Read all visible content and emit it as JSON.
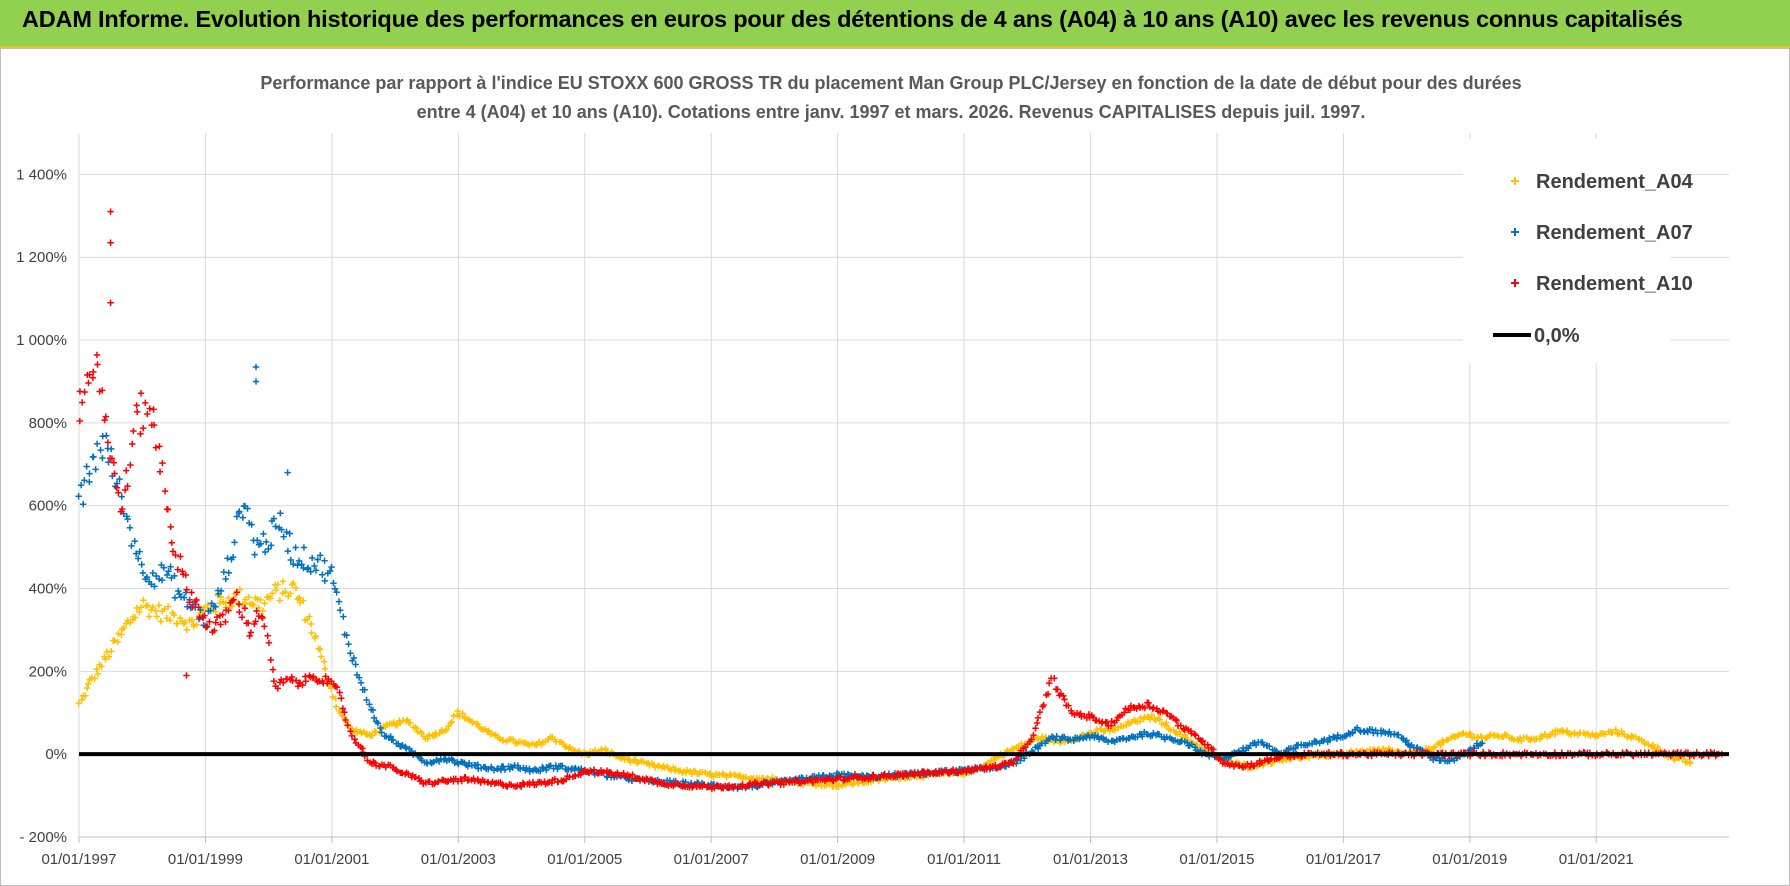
{
  "header": {
    "banner_text": "ADAM Informe. Evolution historique des performances en euros pour des détentions de 4 ans (A04) à 10 ans (A10) avec les revenus connus capitalisés",
    "banner_color": "#92d050"
  },
  "chart_data": {
    "type": "scatter",
    "title_lines": [
      "Performance par rapport à l'indice EU STOXX 600 GROSS TR  du placement Man Group PLC/Jersey en fonction de la date de début pour des durées",
      "entre 4 (A04) et 10 ans (A10).  Cotations entre janv. 1997 et mars. 2026. Revenus CAPITALISES depuis juil. 1997."
    ],
    "xlabel": "",
    "ylabel": "",
    "x_range": [
      1997.0,
      2023.1
    ],
    "ylim": [
      -200,
      1500
    ],
    "y_ticks": [
      -200,
      0,
      200,
      400,
      600,
      800,
      1000,
      1200,
      1400
    ],
    "y_tick_labels": [
      "- 200%",
      "0%",
      "200%",
      "400%",
      "600%",
      "800%",
      "1 000%",
      "1 200%",
      "1 400%"
    ],
    "x_ticks": [
      1997,
      1999,
      2001,
      2003,
      2005,
      2007,
      2009,
      2011,
      2013,
      2015,
      2017,
      2019,
      2021
    ],
    "x_tick_labels": [
      "01/01/1997",
      "01/01/1999",
      "01/01/2001",
      "01/01/2003",
      "01/01/2005",
      "01/01/2007",
      "01/01/2009",
      "01/01/2011",
      "01/01/2013",
      "01/01/2015",
      "01/01/2017",
      "01/01/2019",
      "01/01/2021"
    ],
    "grid": true,
    "legend_position": "top-right",
    "reference_line": {
      "name": "0,0%",
      "y": 0,
      "color": "#000000"
    },
    "series": [
      {
        "name": "Rendement_A04",
        "color": "#ffc000",
        "x": [
          1997.0,
          1997.2,
          1997.5,
          1997.8,
          1998.0,
          1998.3,
          1998.6,
          1998.8,
          1999.0,
          1999.3,
          1999.6,
          1999.9,
          2000.1,
          2000.4,
          2000.7,
          2000.9,
          2001.1,
          2001.3,
          2001.6,
          2001.9,
          2002.2,
          2002.5,
          2002.8,
          2003.0,
          2003.3,
          2003.6,
          2003.9,
          2004.2,
          2004.5,
          2004.8,
          2005.0,
          2005.3,
          2005.6,
          2006.0,
          2006.5,
          2007.0,
          2007.5,
          2008.0,
          2008.5,
          2009.0,
          2009.5,
          2010.0,
          2010.5,
          2011.0,
          2011.3,
          2011.6,
          2011.9,
          2012.2,
          2012.5,
          2012.8,
          2013.1,
          2013.4,
          2013.7,
          2014.0,
          2014.3,
          2014.6,
          2014.9,
          2015.2,
          2015.5,
          2015.8,
          2016.1,
          2016.5,
          2016.9,
          2017.3,
          2017.7,
          2018.0,
          2018.3,
          2018.6,
          2018.9,
          2019.2,
          2019.5,
          2019.8,
          2020.1,
          2020.4,
          2020.7,
          2021.0,
          2021.3,
          2021.6,
          2021.9,
          2022.2,
          2022.5
        ],
        "values": [
          120,
          180,
          250,
          320,
          360,
          340,
          330,
          310,
          350,
          370,
          380,
          360,
          390,
          400,
          300,
          200,
          110,
          60,
          45,
          70,
          80,
          40,
          60,
          100,
          70,
          40,
          30,
          20,
          40,
          10,
          0,
          10,
          -10,
          -25,
          -40,
          -50,
          -55,
          -60,
          -70,
          -75,
          -65,
          -55,
          -50,
          -45,
          -30,
          0,
          20,
          40,
          30,
          40,
          55,
          60,
          80,
          90,
          60,
          30,
          0,
          -20,
          -30,
          -20,
          -10,
          -5,
          0,
          5,
          10,
          0,
          10,
          30,
          50,
          40,
          45,
          35,
          40,
          55,
          50,
          45,
          55,
          40,
          20,
          -10,
          -20
        ]
      },
      {
        "name": "Rendement_A07",
        "color": "#0070c0",
        "x": [
          1997.0,
          1997.2,
          1997.4,
          1997.6,
          1997.8,
          1998.0,
          1998.2,
          1998.4,
          1998.6,
          1998.8,
          1999.0,
          1999.2,
          1999.4,
          1999.6,
          1999.8,
          2000.0,
          2000.2,
          2000.4,
          2000.6,
          2000.8,
          2001.0,
          2001.2,
          2001.4,
          2001.6,
          2001.8,
          2002.0,
          2002.2,
          2002.5,
          2002.8,
          2003.0,
          2003.3,
          2003.6,
          2003.9,
          2004.2,
          2004.5,
          2004.8,
          2005.0,
          2005.5,
          2006.0,
          2006.5,
          2007.0,
          2007.5,
          2008.0,
          2008.5,
          2009.0,
          2009.5,
          2010.0,
          2010.5,
          2011.0,
          2011.4,
          2011.8,
          2012.1,
          2012.4,
          2012.7,
          2013.0,
          2013.3,
          2013.6,
          2013.9,
          2014.2,
          2014.5,
          2014.8,
          2015.1,
          2015.4,
          2015.7,
          2016.0,
          2016.3,
          2016.6,
          2016.9,
          2017.2,
          2017.5,
          2017.8,
          2018.1,
          2018.4,
          2018.7,
          2019.0,
          2019.2
        ],
        "values": [
          600,
          700,
          760,
          650,
          550,
          450,
          430,
          440,
          380,
          360,
          320,
          380,
          480,
          620,
          500,
          520,
          560,
          480,
          470,
          460,
          430,
          300,
          200,
          120,
          50,
          30,
          10,
          -20,
          -10,
          -20,
          -30,
          -35,
          -30,
          -40,
          -30,
          -35,
          -40,
          -55,
          -65,
          -70,
          -75,
          -80,
          -70,
          -60,
          -50,
          -55,
          -50,
          -45,
          -40,
          -35,
          -20,
          10,
          40,
          35,
          45,
          30,
          40,
          50,
          40,
          30,
          0,
          -10,
          10,
          30,
          0,
          20,
          30,
          40,
          60,
          55,
          50,
          20,
          -10,
          -15,
          10,
          30
        ]
      },
      {
        "name": "Rendement_A10",
        "color": "#ff0000",
        "x": [
          1997.0,
          1997.1,
          1997.3,
          1997.5,
          1997.7,
          1997.9,
          1998.1,
          1998.3,
          1998.5,
          1998.7,
          1998.9,
          1999.1,
          1999.3,
          1999.5,
          1999.7,
          1999.9,
          2000.1,
          2000.3,
          2000.5,
          2000.7,
          2000.9,
          2001.1,
          2001.3,
          2001.6,
          2001.9,
          2002.2,
          2002.5,
          2002.8,
          2003.1,
          2003.5,
          2003.9,
          2004.3,
          2004.7,
          2005.0,
          2005.4,
          2005.8,
          2006.2,
          2006.6,
          2007.0,
          2007.5,
          2008.0,
          2008.5,
          2009.0,
          2009.5,
          2010.0,
          2010.5,
          2011.0,
          2011.5,
          2011.8,
          2012.1,
          2012.4,
          2012.7,
          2013.0,
          2013.3,
          2013.6,
          2013.9,
          2014.2,
          2014.5,
          2014.8,
          2015.1,
          2015.4,
          2015.7,
          2016.0,
          2016.5,
          2017.0,
          2017.5,
          2018.0,
          2018.5,
          2019.0,
          2019.5,
          2020.0,
          2020.5,
          2021.0,
          2021.5,
          2022.0,
          2022.5,
          2023.0
        ],
        "values": [
          850,
          900,
          950,
          700,
          600,
          800,
          850,
          700,
          500,
          400,
          350,
          300,
          330,
          380,
          300,
          350,
          160,
          180,
          170,
          190,
          180,
          150,
          50,
          -20,
          -30,
          -50,
          -70,
          -65,
          -60,
          -70,
          -75,
          -70,
          -60,
          -40,
          -45,
          -55,
          -70,
          -75,
          -80,
          -75,
          -70,
          -65,
          -60,
          -55,
          -50,
          -45,
          -40,
          -30,
          -20,
          50,
          180,
          100,
          90,
          70,
          110,
          120,
          100,
          60,
          30,
          -20,
          -30,
          -20,
          -5,
          0,
          0,
          0,
          0,
          0,
          0,
          0,
          0,
          0,
          0,
          0,
          0,
          0,
          0
        ]
      }
    ],
    "outliers": [
      {
        "series": "Rendement_A10",
        "x": 1997.5,
        "y": 1310
      },
      {
        "series": "Rendement_A10",
        "x": 1997.5,
        "y": 1235
      },
      {
        "series": "Rendement_A10",
        "x": 1997.5,
        "y": 1090
      },
      {
        "series": "Rendement_A10",
        "x": 1998.7,
        "y": 190
      },
      {
        "series": "Rendement_A07",
        "x": 1999.8,
        "y": 935
      },
      {
        "series": "Rendement_A07",
        "x": 1999.8,
        "y": 900
      },
      {
        "series": "Rendement_A07",
        "x": 2000.3,
        "y": 680
      }
    ]
  }
}
